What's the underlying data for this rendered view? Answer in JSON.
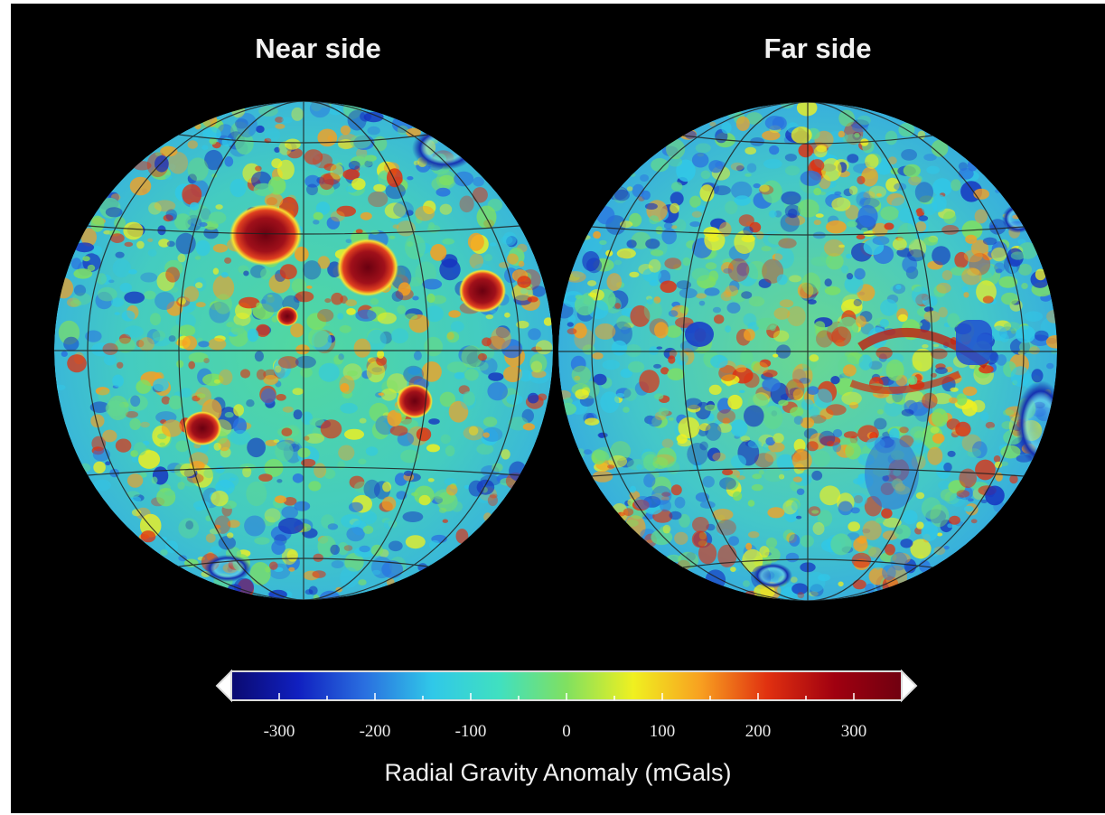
{
  "titles": {
    "near": "Near side",
    "far": "Far side"
  },
  "colorbar": {
    "label": "Radial Gravity Anomaly (mGals)",
    "min": -350,
    "max": 350,
    "ticks": [
      -300,
      -200,
      -100,
      0,
      100,
      200,
      300
    ],
    "tick_labels": [
      "-300",
      "-200",
      "-100",
      "0",
      "100",
      "200",
      "300"
    ],
    "colors": [
      "#0a0a70",
      "#1020c0",
      "#2a70e0",
      "#30c8e8",
      "#40e0c0",
      "#80e060",
      "#f0f020",
      "#f8a020",
      "#e03010",
      "#a00010",
      "#700010"
    ]
  },
  "icons": [
    "colorbar-left-arrow-icon",
    "colorbar-right-arrow-icon"
  ]
}
